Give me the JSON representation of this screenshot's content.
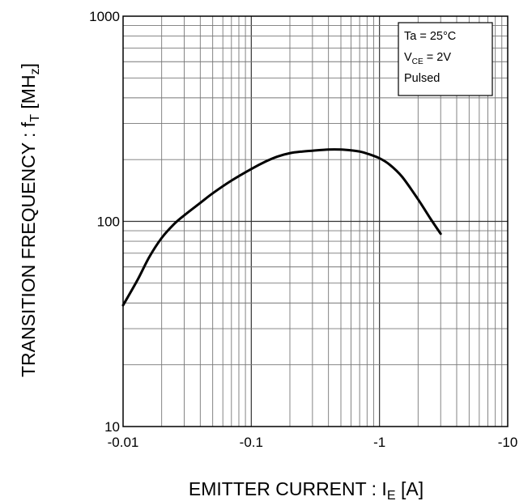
{
  "chart_data": {
    "type": "line",
    "xscale": "log",
    "yscale": "log",
    "xlim": [
      0.01,
      10
    ],
    "ylim": [
      10,
      1000
    ],
    "grid": true,
    "x_tick_labels": [
      "-0.01",
      "-0.1",
      "-1",
      "-10"
    ],
    "y_tick_labels": [
      "10",
      "100",
      "1000"
    ],
    "xlabel": {
      "main": "EMITTER CURRENT : I",
      "sub": "E",
      "unit": " [A]"
    },
    "ylabel": {
      "main": "TRANSITION FREQUENCY : f",
      "sub": "T",
      "unit": " [MH",
      "unit_sub": "z",
      "unit_end": "]"
    },
    "conditions": {
      "line1": "Ta = 25°C",
      "line2_main": "V",
      "line2_sub": "CE",
      "line2_rest": " = 2V",
      "line3": "Pulsed"
    },
    "legend_position": "top-right",
    "series": [
      {
        "x": [
          0.01,
          0.013,
          0.016,
          0.02,
          0.025,
          0.03,
          0.04,
          0.05,
          0.07,
          0.1,
          0.13,
          0.16,
          0.2,
          0.25,
          0.3,
          0.4,
          0.5,
          0.6,
          0.7,
          0.8,
          1.0,
          1.2,
          1.5,
          2.0,
          2.5,
          3.0
        ],
        "y": [
          39,
          52,
          67,
          83,
          97,
          107,
          123,
          137,
          158,
          180,
          196,
          207,
          215,
          219,
          221,
          224,
          224,
          222,
          219,
          214,
          203,
          189,
          165,
          128,
          103,
          87
        ],
        "color": "#000000"
      }
    ]
  }
}
